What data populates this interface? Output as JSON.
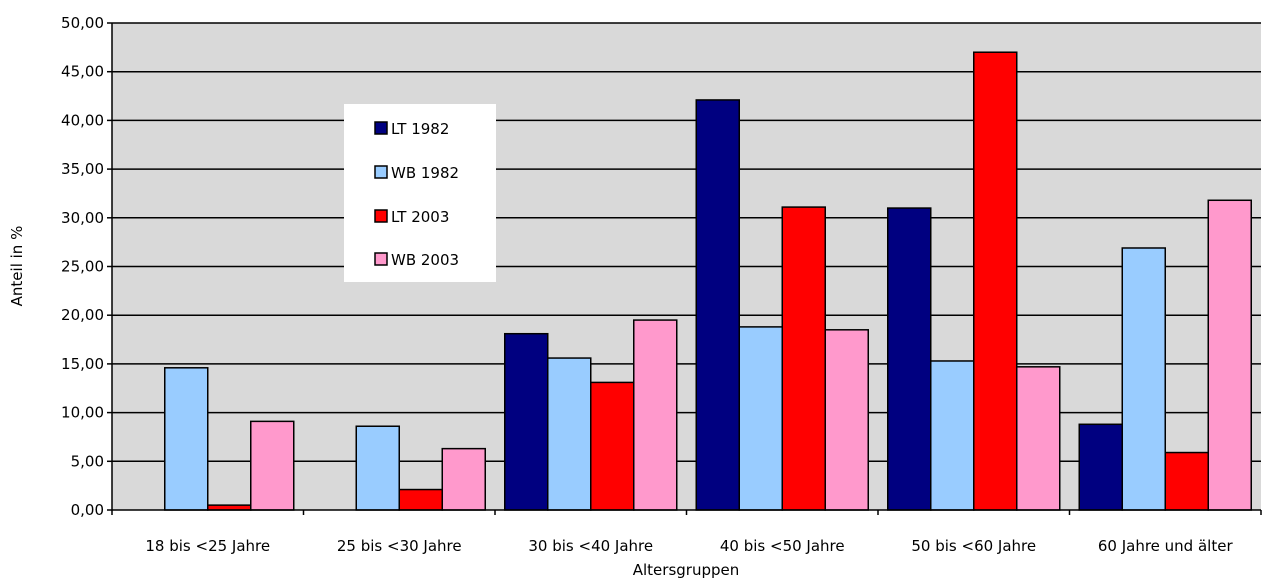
{
  "chart_data": {
    "type": "bar",
    "title": "",
    "xlabel": "Altersgruppen",
    "ylabel": "Anteil in %",
    "ylim": [
      0,
      50
    ],
    "ytick_step": 5,
    "ytick_labels": [
      "0,00",
      "5,00",
      "10,00",
      "15,00",
      "20,00",
      "25,00",
      "30,00",
      "35,00",
      "40,00",
      "45,00",
      "50,00"
    ],
    "grid": true,
    "plot_background": "#d9d9d9",
    "legend_position": "upper-left-inside",
    "categories": [
      "18 bis <25 Jahre",
      "25 bis <30 Jahre",
      "30 bis <40 Jahre",
      "40 bis <50 Jahre",
      "50 bis <60 Jahre",
      "60 Jahre und älter"
    ],
    "series": [
      {
        "name": "LT 1982",
        "color": "#000080",
        "values": [
          0.0,
          0.0,
          18.1,
          42.1,
          31.0,
          8.8
        ]
      },
      {
        "name": "WB 1982",
        "color": "#99ccff",
        "values": [
          14.6,
          8.6,
          15.6,
          18.8,
          15.3,
          26.9
        ]
      },
      {
        "name": "LT 2003",
        "color": "#ff0000",
        "values": [
          0.5,
          2.1,
          13.1,
          31.1,
          47.0,
          5.9
        ]
      },
      {
        "name": "WB 2003",
        "color": "#ff99cc",
        "values": [
          9.1,
          6.3,
          19.5,
          18.5,
          14.7,
          31.8
        ]
      }
    ]
  }
}
